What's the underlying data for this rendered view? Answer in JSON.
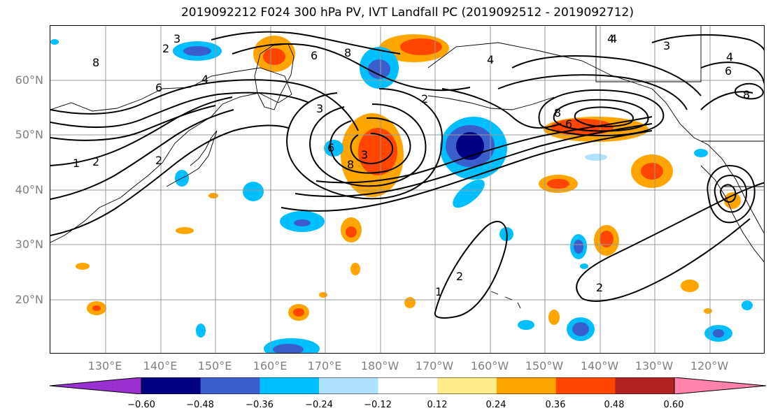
{
  "title": "2019092212 F024 300 hPa PV, IVT Landfall PC (2019092512 - 2019092712)",
  "lat_labels": [
    "60°N",
    "50°N",
    "40°N",
    "30°N",
    "20°N"
  ],
  "lon_labels": [
    "130°E",
    "140°E",
    "150°E",
    "160°E",
    "170°E",
    "180°W",
    "170°W",
    "160°W",
    "150°W",
    "140°W",
    "130°W",
    "120°W"
  ],
  "colorbar": {
    "colors": [
      "#9b30d0",
      "#000080",
      "#3a5fcd",
      "#00bfff",
      "#b0e2ff",
      "#ffffff",
      "#ffec8b",
      "#ffa500",
      "#ff4500",
      "#b22222",
      "#ff82ab"
    ],
    "ticks": [
      "−0.60",
      "−0.48",
      "−0.36",
      "−0.24",
      "−0.12",
      "0.12",
      "0.24",
      "0.36",
      "0.48",
      "0.60"
    ]
  },
  "contour_labels": [
    "2",
    "3",
    "4",
    "6",
    "8",
    "3",
    "3",
    "8",
    "6",
    "4",
    "3",
    "4",
    "2",
    "1",
    "2",
    "2",
    "1",
    "2",
    "8",
    "6",
    "8",
    "2",
    "6",
    "4",
    "4",
    "8",
    "6"
  ],
  "icon": "pv-ivt-map"
}
